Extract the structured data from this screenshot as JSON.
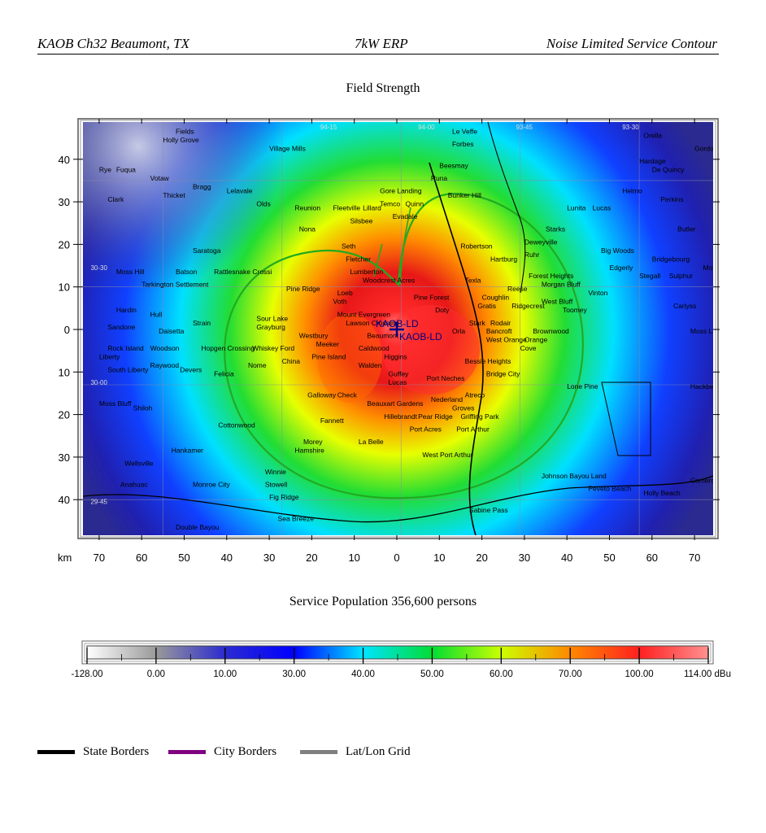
{
  "header": {
    "left": "KAOB Ch32 Beaumont, TX",
    "center": "7kW ERP",
    "right": "Noise Limited Service Contour"
  },
  "map": {
    "title": "Field Strength",
    "axis_unit": "km",
    "x_ticks": [
      "70",
      "60",
      "50",
      "40",
      "30",
      "20",
      "10",
      "0",
      "10",
      "20",
      "30",
      "40",
      "50",
      "60",
      "70"
    ],
    "y_ticks": [
      "40",
      "30",
      "20",
      "10",
      "0",
      "10",
      "20",
      "30",
      "40"
    ],
    "grid_labels": [
      "94-15",
      "94-00",
      "93-45",
      "93-30",
      "30-30",
      "30-00",
      "29-45"
    ],
    "station_labels": [
      "KAOB-LD",
      "KAOB-LD"
    ],
    "places": [
      {
        "name": "Holly Grove",
        "x": -55,
        "y": 44
      },
      {
        "name": "Village Mills",
        "x": -30,
        "y": 42
      },
      {
        "name": "Le Veffe",
        "x": 13,
        "y": 46
      },
      {
        "name": "Forbes",
        "x": 13,
        "y": 43
      },
      {
        "name": "Fields",
        "x": -52,
        "y": 46
      },
      {
        "name": "Orella",
        "x": 58,
        "y": 45
      },
      {
        "name": "Gordon",
        "x": 70,
        "y": 42
      },
      {
        "name": "Rye",
        "x": -70,
        "y": 37
      },
      {
        "name": "Fuqua",
        "x": -66,
        "y": 37
      },
      {
        "name": "Votaw",
        "x": -58,
        "y": 35
      },
      {
        "name": "Beesmay",
        "x": 10,
        "y": 38
      },
      {
        "name": "Runa",
        "x": 8,
        "y": 35
      },
      {
        "name": "Hardage",
        "x": 57,
        "y": 39
      },
      {
        "name": "De Quincy",
        "x": 60,
        "y": 37
      },
      {
        "name": "Bragg",
        "x": -48,
        "y": 33
      },
      {
        "name": "Gore Landing",
        "x": -4,
        "y": 32
      },
      {
        "name": "Bunker Hill",
        "x": 12,
        "y": 31
      },
      {
        "name": "Clark",
        "x": -68,
        "y": 30
      },
      {
        "name": "Thicket",
        "x": -55,
        "y": 31
      },
      {
        "name": "Lelavale",
        "x": -40,
        "y": 32
      },
      {
        "name": "Olds",
        "x": -33,
        "y": 29
      },
      {
        "name": "Quinn",
        "x": 2,
        "y": 29
      },
      {
        "name": "Temco",
        "x": -4,
        "y": 29
      },
      {
        "name": "Lillard",
        "x": -8,
        "y": 28
      },
      {
        "name": "Reunion",
        "x": -24,
        "y": 28
      },
      {
        "name": "Fleetville",
        "x": -15,
        "y": 28
      },
      {
        "name": "Evadale",
        "x": -1,
        "y": 26
      },
      {
        "name": "Silsbee",
        "x": -11,
        "y": 25
      },
      {
        "name": "Helmo",
        "x": 53,
        "y": 32
      },
      {
        "name": "Perkins",
        "x": 62,
        "y": 30
      },
      {
        "name": "Lunita",
        "x": 40,
        "y": 28
      },
      {
        "name": "Lucas",
        "x": 46,
        "y": 28
      },
      {
        "name": "Nona",
        "x": -23,
        "y": 23
      },
      {
        "name": "Starks",
        "x": 35,
        "y": 23
      },
      {
        "name": "Butler",
        "x": 66,
        "y": 23
      },
      {
        "name": "Seth",
        "x": -13,
        "y": 19
      },
      {
        "name": "Robertson",
        "x": 15,
        "y": 19
      },
      {
        "name": "Deweyville",
        "x": 30,
        "y": 20
      },
      {
        "name": "Saratoga",
        "x": -48,
        "y": 18
      },
      {
        "name": "Fletcher",
        "x": -12,
        "y": 16
      },
      {
        "name": "Hartburg",
        "x": 22,
        "y": 16
      },
      {
        "name": "Ruhr",
        "x": 30,
        "y": 17
      },
      {
        "name": "Big Woods",
        "x": 48,
        "y": 18
      },
      {
        "name": "Lumberton",
        "x": -11,
        "y": 13
      },
      {
        "name": "Batson",
        "x": -52,
        "y": 13
      },
      {
        "name": "Rattlesnake Crossi",
        "x": -43,
        "y": 13
      },
      {
        "name": "Moss Hill",
        "x": -66,
        "y": 13
      },
      {
        "name": "Edgerly",
        "x": 50,
        "y": 14
      },
      {
        "name": "Bridgebourg",
        "x": 60,
        "y": 16
      },
      {
        "name": "Forest Heights",
        "x": 31,
        "y": 12
      },
      {
        "name": "Stegall",
        "x": 57,
        "y": 12
      },
      {
        "name": "Sulphur",
        "x": 64,
        "y": 12
      },
      {
        "name": "Moss",
        "x": 72,
        "y": 14
      },
      {
        "name": "Woodcrest Acres",
        "x": -8,
        "y": 11
      },
      {
        "name": "Texla",
        "x": 16,
        "y": 11
      },
      {
        "name": "Tarkington Settlement",
        "x": -60,
        "y": 10
      },
      {
        "name": "Pine Ridge",
        "x": -26,
        "y": 9
      },
      {
        "name": "Morgan Bluff",
        "x": 34,
        "y": 10
      },
      {
        "name": "Reese",
        "x": 26,
        "y": 9
      },
      {
        "name": "Loeb",
        "x": -14,
        "y": 8
      },
      {
        "name": "Coughlin",
        "x": 20,
        "y": 7
      },
      {
        "name": "Vinton",
        "x": 45,
        "y": 8
      },
      {
        "name": "Pine Forest",
        "x": 4,
        "y": 7
      },
      {
        "name": "Voth",
        "x": -15,
        "y": 6
      },
      {
        "name": "Gratis",
        "x": 19,
        "y": 5
      },
      {
        "name": "West Bluff",
        "x": 34,
        "y": 6
      },
      {
        "name": "Ridgecrest",
        "x": 27,
        "y": 5
      },
      {
        "name": "Doty",
        "x": 9,
        "y": 4
      },
      {
        "name": "Carlyss",
        "x": 65,
        "y": 5
      },
      {
        "name": "Toomey",
        "x": 39,
        "y": 4
      },
      {
        "name": "Mount Evergreen",
        "x": -14,
        "y": 3
      },
      {
        "name": "Hardin",
        "x": -66,
        "y": 4
      },
      {
        "name": "Sour Lake",
        "x": -33,
        "y": 2
      },
      {
        "name": "Hull",
        "x": -58,
        "y": 3
      },
      {
        "name": "Strain",
        "x": -48,
        "y": 1
      },
      {
        "name": "Stark",
        "x": 17,
        "y": 1
      },
      {
        "name": "Rodair",
        "x": 22,
        "y": 1
      },
      {
        "name": "Lawson Crossing",
        "x": -12,
        "y": 1
      },
      {
        "name": "Grayburg",
        "x": -33,
        "y": 0
      },
      {
        "name": "Sandone",
        "x": -68,
        "y": 0
      },
      {
        "name": "Daisetta",
        "x": -56,
        "y": -1
      },
      {
        "name": "Orla",
        "x": 13,
        "y": -1
      },
      {
        "name": "Bancroft",
        "x": 21,
        "y": -1
      },
      {
        "name": "Brownwood",
        "x": 32,
        "y": -1
      },
      {
        "name": "Moss Lake",
        "x": 69,
        "y": -1
      },
      {
        "name": "Beaumont",
        "x": -7,
        "y": -2
      },
      {
        "name": "Westbury",
        "x": -23,
        "y": -2
      },
      {
        "name": "West Orange",
        "x": 21,
        "y": -3
      },
      {
        "name": "Orange",
        "x": 30,
        "y": -3
      },
      {
        "name": "Meeker",
        "x": -19,
        "y": -4
      },
      {
        "name": "Caldwood",
        "x": -9,
        "y": -5
      },
      {
        "name": "Rock Island",
        "x": -68,
        "y": -5
      },
      {
        "name": "Woodson",
        "x": -58,
        "y": -5
      },
      {
        "name": "Hopgen Crossing",
        "x": -46,
        "y": -5
      },
      {
        "name": "Whiskey Ford",
        "x": -34,
        "y": -5
      },
      {
        "name": "Cove",
        "x": 29,
        "y": -5
      },
      {
        "name": "Liberty",
        "x": -70,
        "y": -7
      },
      {
        "name": "Pine Island",
        "x": -20,
        "y": -7
      },
      {
        "name": "Higgins",
        "x": -3,
        "y": -7
      },
      {
        "name": "China",
        "x": -27,
        "y": -8
      },
      {
        "name": "Raywood",
        "x": -58,
        "y": -9
      },
      {
        "name": "Bessie Heights",
        "x": 16,
        "y": -8
      },
      {
        "name": "Nome",
        "x": -35,
        "y": -9
      },
      {
        "name": "Devers",
        "x": -51,
        "y": -10
      },
      {
        "name": "South Liberty",
        "x": -68,
        "y": -10
      },
      {
        "name": "Felicia",
        "x": -43,
        "y": -11
      },
      {
        "name": "Walden",
        "x": -9,
        "y": -9
      },
      {
        "name": "Bridge City",
        "x": 21,
        "y": -11
      },
      {
        "name": "Guffey",
        "x": -2,
        "y": -11
      },
      {
        "name": "Port Neches",
        "x": 7,
        "y": -12
      },
      {
        "name": "Lucas",
        "x": -2,
        "y": -13
      },
      {
        "name": "Lone Pine",
        "x": 40,
        "y": -14
      },
      {
        "name": "Hackberry",
        "x": 69,
        "y": -14
      },
      {
        "name": "Galloway",
        "x": -21,
        "y": -16
      },
      {
        "name": "Check",
        "x": -14,
        "y": -16
      },
      {
        "name": "Atreco",
        "x": 16,
        "y": -16
      },
      {
        "name": "Nederland",
        "x": 8,
        "y": -17
      },
      {
        "name": "Beauxart Gardens",
        "x": -7,
        "y": -18
      },
      {
        "name": "Moss Bluff",
        "x": -70,
        "y": -18
      },
      {
        "name": "Shiloh",
        "x": -62,
        "y": -19
      },
      {
        "name": "Groves",
        "x": 13,
        "y": -19
      },
      {
        "name": "Hillebrandt",
        "x": -3,
        "y": -21
      },
      {
        "name": "Pear Ridge",
        "x": 5,
        "y": -21
      },
      {
        "name": "Griffing Park",
        "x": 15,
        "y": -21
      },
      {
        "name": "Fannett",
        "x": -18,
        "y": -22
      },
      {
        "name": "Cottonwood",
        "x": -42,
        "y": -23
      },
      {
        "name": "Port Acres",
        "x": 3,
        "y": -24
      },
      {
        "name": "Port Arthur",
        "x": 14,
        "y": -24
      },
      {
        "name": "La Belle",
        "x": -9,
        "y": -27
      },
      {
        "name": "Morey",
        "x": -22,
        "y": -27
      },
      {
        "name": "Hamshire",
        "x": -24,
        "y": -29
      },
      {
        "name": "Hankamer",
        "x": -53,
        "y": -29
      },
      {
        "name": "West Port Arthur",
        "x": 6,
        "y": -30
      },
      {
        "name": "Wellsville",
        "x": -64,
        "y": -32
      },
      {
        "name": "Winnie",
        "x": -31,
        "y": -34
      },
      {
        "name": "Johnson Bayou Land",
        "x": 34,
        "y": -35
      },
      {
        "name": "Cameron",
        "x": 69,
        "y": -36
      },
      {
        "name": "Stowell",
        "x": -31,
        "y": -37
      },
      {
        "name": "Anahuac",
        "x": -65,
        "y": -37
      },
      {
        "name": "Monroe City",
        "x": -48,
        "y": -37
      },
      {
        "name": "Peveto Beach",
        "x": 45,
        "y": -38
      },
      {
        "name": "Holly Beach",
        "x": 58,
        "y": -39
      },
      {
        "name": "Fig Ridge",
        "x": -30,
        "y": -40
      },
      {
        "name": "Sabine Pass",
        "x": 17,
        "y": -43
      },
      {
        "name": "Sea Breeze",
        "x": -28,
        "y": -45
      },
      {
        "name": "Double Bayou",
        "x": -52,
        "y": -47
      }
    ]
  },
  "service_population": "Service Population 356,600 persons",
  "color_scale": {
    "labels": [
      "-128.00",
      "0.00",
      "10.00",
      "30.00",
      "40.00",
      "50.00",
      "60.00",
      "70.00",
      "100.00",
      "114.00 dBu"
    ],
    "colors": [
      "#ffffff",
      "#9a9a9a",
      "#2b2bd0",
      "#0000ff",
      "#00e4ff",
      "#00dd33",
      "#ccff00",
      "#ff8800",
      "#ff2020",
      "#ff9090",
      "#ffffff"
    ]
  },
  "legend": [
    {
      "label": "State Borders",
      "color": "#000000"
    },
    {
      "label": "City Borders",
      "color": "#800080"
    },
    {
      "label": "Lat/Lon Grid",
      "color": "#808080"
    }
  ]
}
